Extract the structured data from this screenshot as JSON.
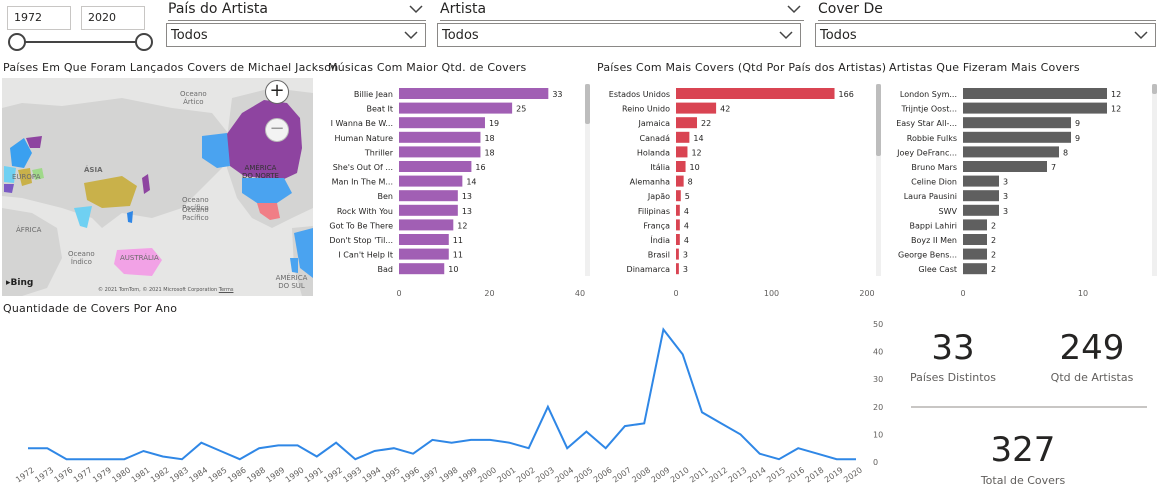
{
  "slicers": {
    "year_start": "1972",
    "year_end": "2020",
    "pais": {
      "title": "País do Artista",
      "value": "Todos"
    },
    "artista": {
      "title": "Artista",
      "value": "Todos"
    },
    "cover_de": {
      "title": "Cover De",
      "value": "Todos"
    }
  },
  "map": {
    "title": "Países Em Que Foram Lançados Covers de Michael Jackson",
    "labels": {
      "artico": "Oceano\nÁrtico",
      "asia": "ÁSIA",
      "europa": "EUROPA",
      "america_norte": "AMÉRICA\nDO NORTE",
      "pacifico_1": "Oceano\nPacífico",
      "pacifico_2": "Oceano\nPacífico",
      "africa": "ÁFRICA",
      "indico": "Oceano\nÍndico",
      "australia": "AUSTRÁLIA",
      "america_sul": "AMÉRICA DO SUL"
    },
    "bing": "Bing",
    "copyright": "© 2021 TomTom, © 2021 Microsoft Corporation",
    "terms": "Terms",
    "zoom_in": "+",
    "zoom_out": "−"
  },
  "kpis": {
    "paises": {
      "value": "33",
      "label": "Países Distintos"
    },
    "artistas": {
      "value": "249",
      "label": "Qtd de Artistas"
    },
    "covers": {
      "value": "327",
      "label": "Total de Covers"
    }
  },
  "colors": {
    "songs_bar": "#a15fb4",
    "countries_bar": "#d94452",
    "artists_bar": "#5f5f5f",
    "line": "#2f87e6"
  },
  "chart_data": [
    {
      "id": "songs",
      "type": "bar",
      "orientation": "horizontal",
      "title": "Músicas Com Maior Qtd. de Covers",
      "categories": [
        "Billie Jean",
        "Beat It",
        "I Wanna Be W...",
        "Human Nature",
        "Thriller",
        "She's Out Of ...",
        "Man In The M...",
        "Ben",
        "Rock With You",
        "Got To Be There",
        "Don't Stop 'Til...",
        "I Can't Help It",
        "Bad"
      ],
      "values": [
        33,
        25,
        19,
        18,
        18,
        16,
        14,
        13,
        13,
        12,
        11,
        11,
        10
      ],
      "xlim": [
        0,
        40
      ],
      "xticks": [
        0,
        20,
        40
      ]
    },
    {
      "id": "countries",
      "type": "bar",
      "orientation": "horizontal",
      "title": "Países Com Mais Covers (Qtd Por País dos Artistas)",
      "categories": [
        "Estados Unidos",
        "Reino Unido",
        "Jamaica",
        "Canadá",
        "Holanda",
        "Itália",
        "Alemanha",
        "Japão",
        "Filipinas",
        "França",
        "Índia",
        "Brasil",
        "Dinamarca"
      ],
      "values": [
        166,
        42,
        22,
        14,
        12,
        10,
        8,
        5,
        4,
        4,
        4,
        3,
        3
      ],
      "xlim": [
        0,
        200
      ],
      "xticks": [
        0,
        100,
        200
      ]
    },
    {
      "id": "artists",
      "type": "bar",
      "orientation": "horizontal",
      "title": "Artistas Que Fizeram Mais Covers",
      "categories": [
        "London Sym...",
        "Trijntje Oost...",
        "Easy Star All-...",
        "Robbie Fulks",
        "Joey DeFranc...",
        "Bruno Mars",
        "Celine Dion",
        "Laura Pausini",
        "SWV",
        "Bappi Lahiri",
        "Boyz II Men",
        "George Bens...",
        "Glee Cast"
      ],
      "values": [
        12,
        12,
        9,
        9,
        8,
        7,
        3,
        3,
        3,
        2,
        2,
        2,
        2
      ],
      "xlim": [
        0,
        14
      ],
      "xticks": [
        0,
        10
      ]
    },
    {
      "id": "timeline",
      "type": "line",
      "title": "Quantidade de Covers Por Ano",
      "x": [
        "1972",
        "1973",
        "1976",
        "1977",
        "1979",
        "1980",
        "1981",
        "1982",
        "1983",
        "1984",
        "1985",
        "1986",
        "1988",
        "1989",
        "1990",
        "1991",
        "1992",
        "1993",
        "1994",
        "1995",
        "1996",
        "1997",
        "1998",
        "1999",
        "2000",
        "2001",
        "2002",
        "2003",
        "2004",
        "2005",
        "2006",
        "2007",
        "2008",
        "2009",
        "2010",
        "2011",
        "2012",
        "2013",
        "2014",
        "2015",
        "2016",
        "2018",
        "2019",
        "2020"
      ],
      "values": [
        5,
        5,
        1,
        1,
        1,
        1,
        4,
        2,
        1,
        7,
        4,
        1,
        5,
        6,
        6,
        2,
        7,
        1,
        4,
        5,
        3,
        8,
        7,
        8,
        8,
        7,
        5,
        20,
        5,
        11,
        5,
        13,
        14,
        48,
        39,
        18,
        14,
        10,
        3,
        1,
        5,
        3,
        1,
        1
      ],
      "ylim": [
        0,
        50
      ],
      "yticks": [
        0,
        10,
        20,
        30,
        40,
        50
      ]
    }
  ]
}
